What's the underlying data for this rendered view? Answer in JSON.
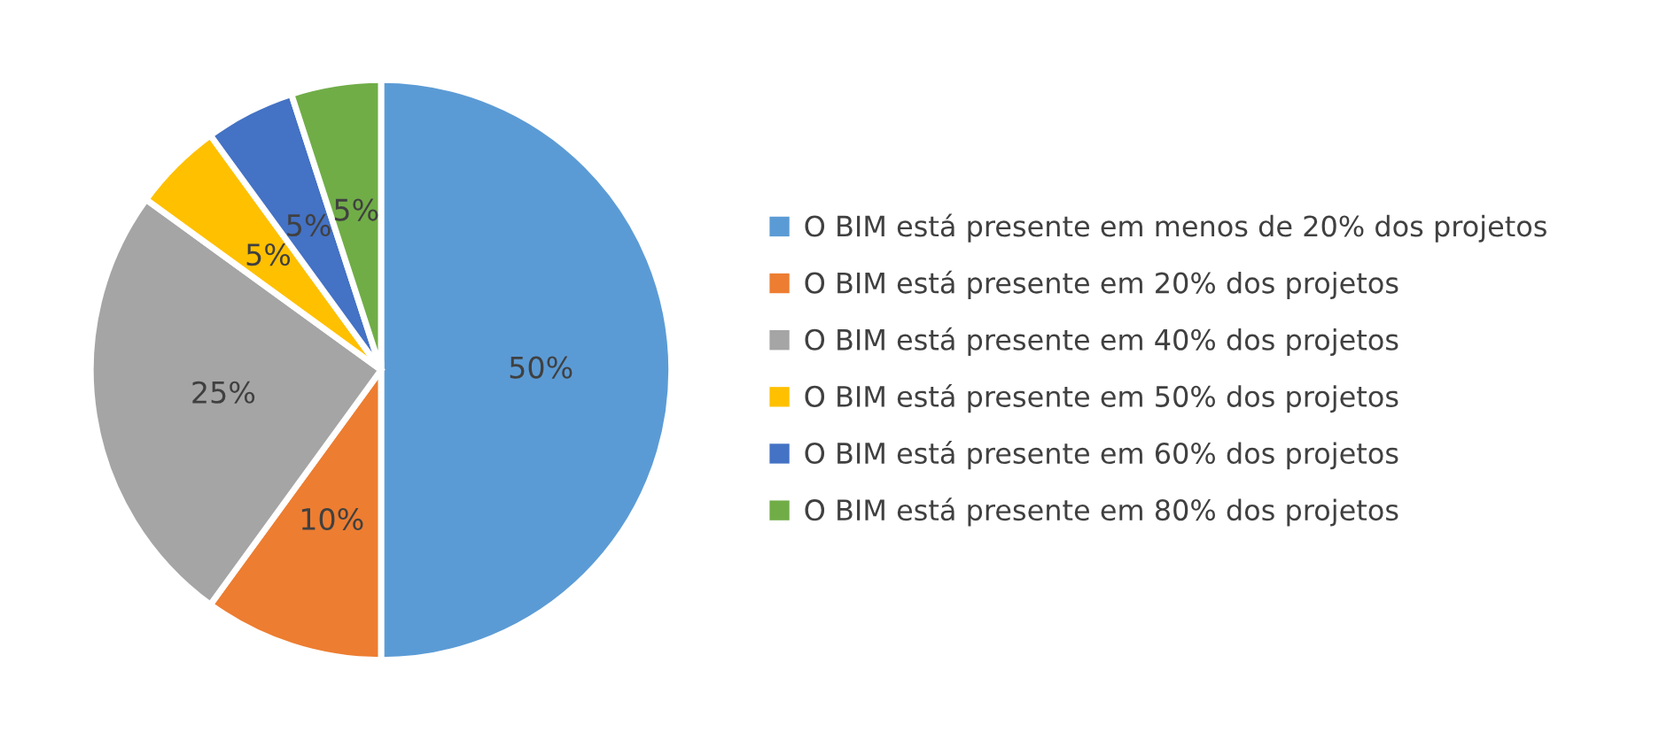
{
  "chart_data": {
    "type": "pie",
    "categories": [
      "O BIM está presente em menos de 20% dos projetos",
      "O BIM está presente em 20% dos projetos",
      "O BIM está presente em 40% dos projetos",
      "O BIM está presente em 50% dos projetos",
      "O BIM está presente em 60% dos projetos",
      "O BIM está presente em 80% dos projetos"
    ],
    "values": [
      50,
      10,
      25,
      5,
      5,
      5
    ],
    "value_labels": [
      "50%",
      "10%",
      "25%",
      "5%",
      "5%",
      "5%"
    ],
    "colors": [
      "#5b9bd5",
      "#ed7d31",
      "#a5a5a5",
      "#ffc000",
      "#4472c4",
      "#70ad47"
    ],
    "legend": "right"
  }
}
